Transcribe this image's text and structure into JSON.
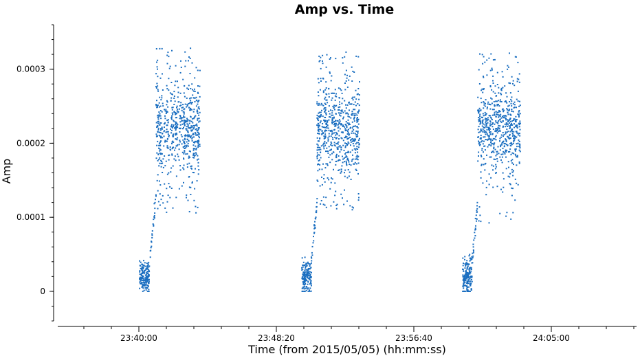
{
  "chart_data": {
    "type": "scatter",
    "title": "Amp vs. Time",
    "xlabel": "Time (from 2015/05/05) (hh:mm:ss)",
    "ylabel": "Amp",
    "x_axis": {
      "format": "hh:mm:ss",
      "range": [
        "23:35:05",
        "24:10:10"
      ],
      "major_ticks": [
        "23:40:00",
        "23:48:20",
        "23:56:40",
        "24:05:00"
      ]
    },
    "y_axis": {
      "range": [
        -4e-05,
        0.00036
      ],
      "ticks": [
        0,
        0.0001,
        0.0002,
        0.0003
      ],
      "tick_labels": [
        "0",
        "0.0001",
        "0.0002",
        "0.0003"
      ]
    },
    "grid": false,
    "series_color": "#1a6ec0",
    "scans": [
      {
        "low": {
          "x_start": "23:40:00",
          "x_end": "23:40:35",
          "y_min": 0.0,
          "y_max": 4.5e-05,
          "center": 2e-05
        },
        "transition": {
          "x_start": "23:40:35",
          "x_end": "23:41:00",
          "y_from": 3.5e-05,
          "y_to": 0.00013
        },
        "high": {
          "x_start": "23:41:00",
          "x_end": "23:43:40",
          "y_min": 0.000105,
          "y_max": 0.00033,
          "center": 0.00022
        }
      },
      {
        "low": {
          "x_start": "23:49:50",
          "x_end": "23:50:25",
          "y_min": 0.0,
          "y_max": 5e-05,
          "center": 2e-05
        },
        "transition": {
          "x_start": "23:50:25",
          "x_end": "23:50:45",
          "y_from": 4e-05,
          "y_to": 0.00012
        },
        "high": {
          "x_start": "23:50:45",
          "x_end": "23:53:20",
          "y_min": 0.000108,
          "y_max": 0.000325,
          "center": 0.00022
        }
      },
      {
        "low": {
          "x_start": "23:59:35",
          "x_end": "24:00:10",
          "y_min": 0.0,
          "y_max": 6e-05,
          "center": 2e-05
        },
        "transition": {
          "x_start": "24:00:10",
          "x_end": "24:00:30",
          "y_from": 4e-05,
          "y_to": 0.00012
        },
        "high": {
          "x_start": "24:00:30",
          "x_end": "24:03:05",
          "y_min": 9.2e-05,
          "y_max": 0.000322,
          "center": 0.00022
        }
      }
    ]
  }
}
